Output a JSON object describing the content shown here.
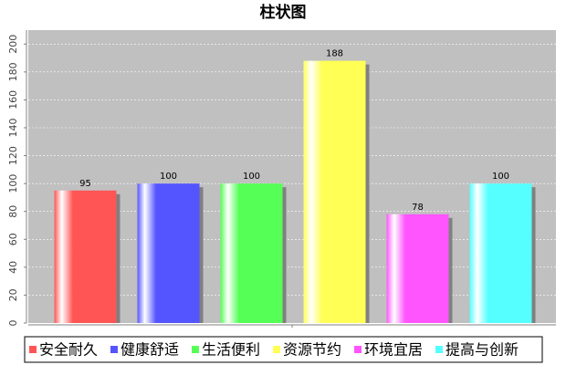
{
  "chart_data": {
    "type": "bar",
    "title": "柱状图",
    "categories": [
      "安全耐久",
      "健康舒适",
      "生活便利",
      "资源节约",
      "环境宜居",
      "提高与创新"
    ],
    "values": [
      95,
      100,
      100,
      188,
      78,
      100
    ],
    "colors": [
      "#ff5555",
      "#5555ff",
      "#55ff55",
      "#ffff55",
      "#ff55ff",
      "#55ffff"
    ],
    "ylim": [
      0,
      210
    ],
    "yticks": [
      0,
      20,
      40,
      60,
      80,
      100,
      120,
      140,
      160,
      180,
      200
    ],
    "grid": true,
    "legend": "bottom"
  }
}
